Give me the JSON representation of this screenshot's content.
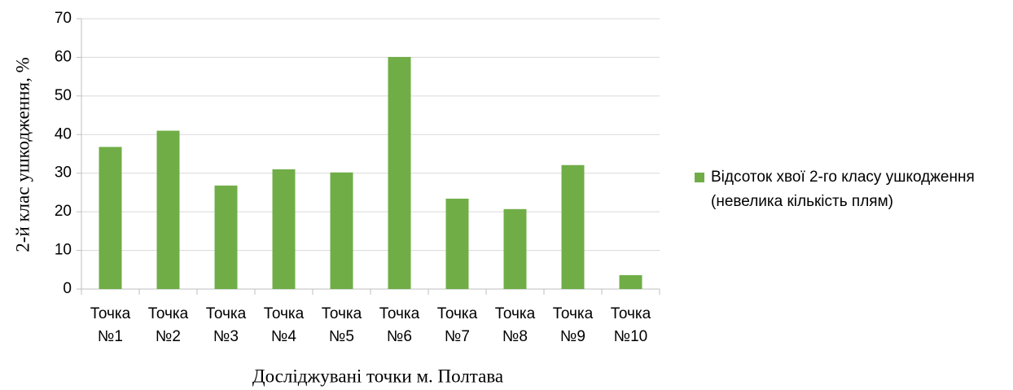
{
  "chart_data": {
    "type": "bar",
    "categories": [
      "Точка №1",
      "Точка №2",
      "Точка №3",
      "Точка №4",
      "Точка №5",
      "Точка №6",
      "Точка №7",
      "Точка №8",
      "Точка №9",
      "Точка №10"
    ],
    "series": [
      {
        "name": "Відсоток хвої 2-го класу ушкодження (невелика кількість плям)",
        "color": "#70ad47",
        "values": [
          36.8,
          41,
          26.8,
          31,
          30.2,
          60.1,
          23.4,
          20.7,
          32.1,
          3.6
        ]
      }
    ],
    "ylim": [
      0,
      70
    ],
    "yticks": [
      0,
      10,
      20,
      30,
      40,
      50,
      60,
      70
    ],
    "grid": true,
    "y_label": "2-й клас ушкодження, %",
    "x_label": "Досліджувані точки м. Полтава",
    "legend": "right"
  }
}
